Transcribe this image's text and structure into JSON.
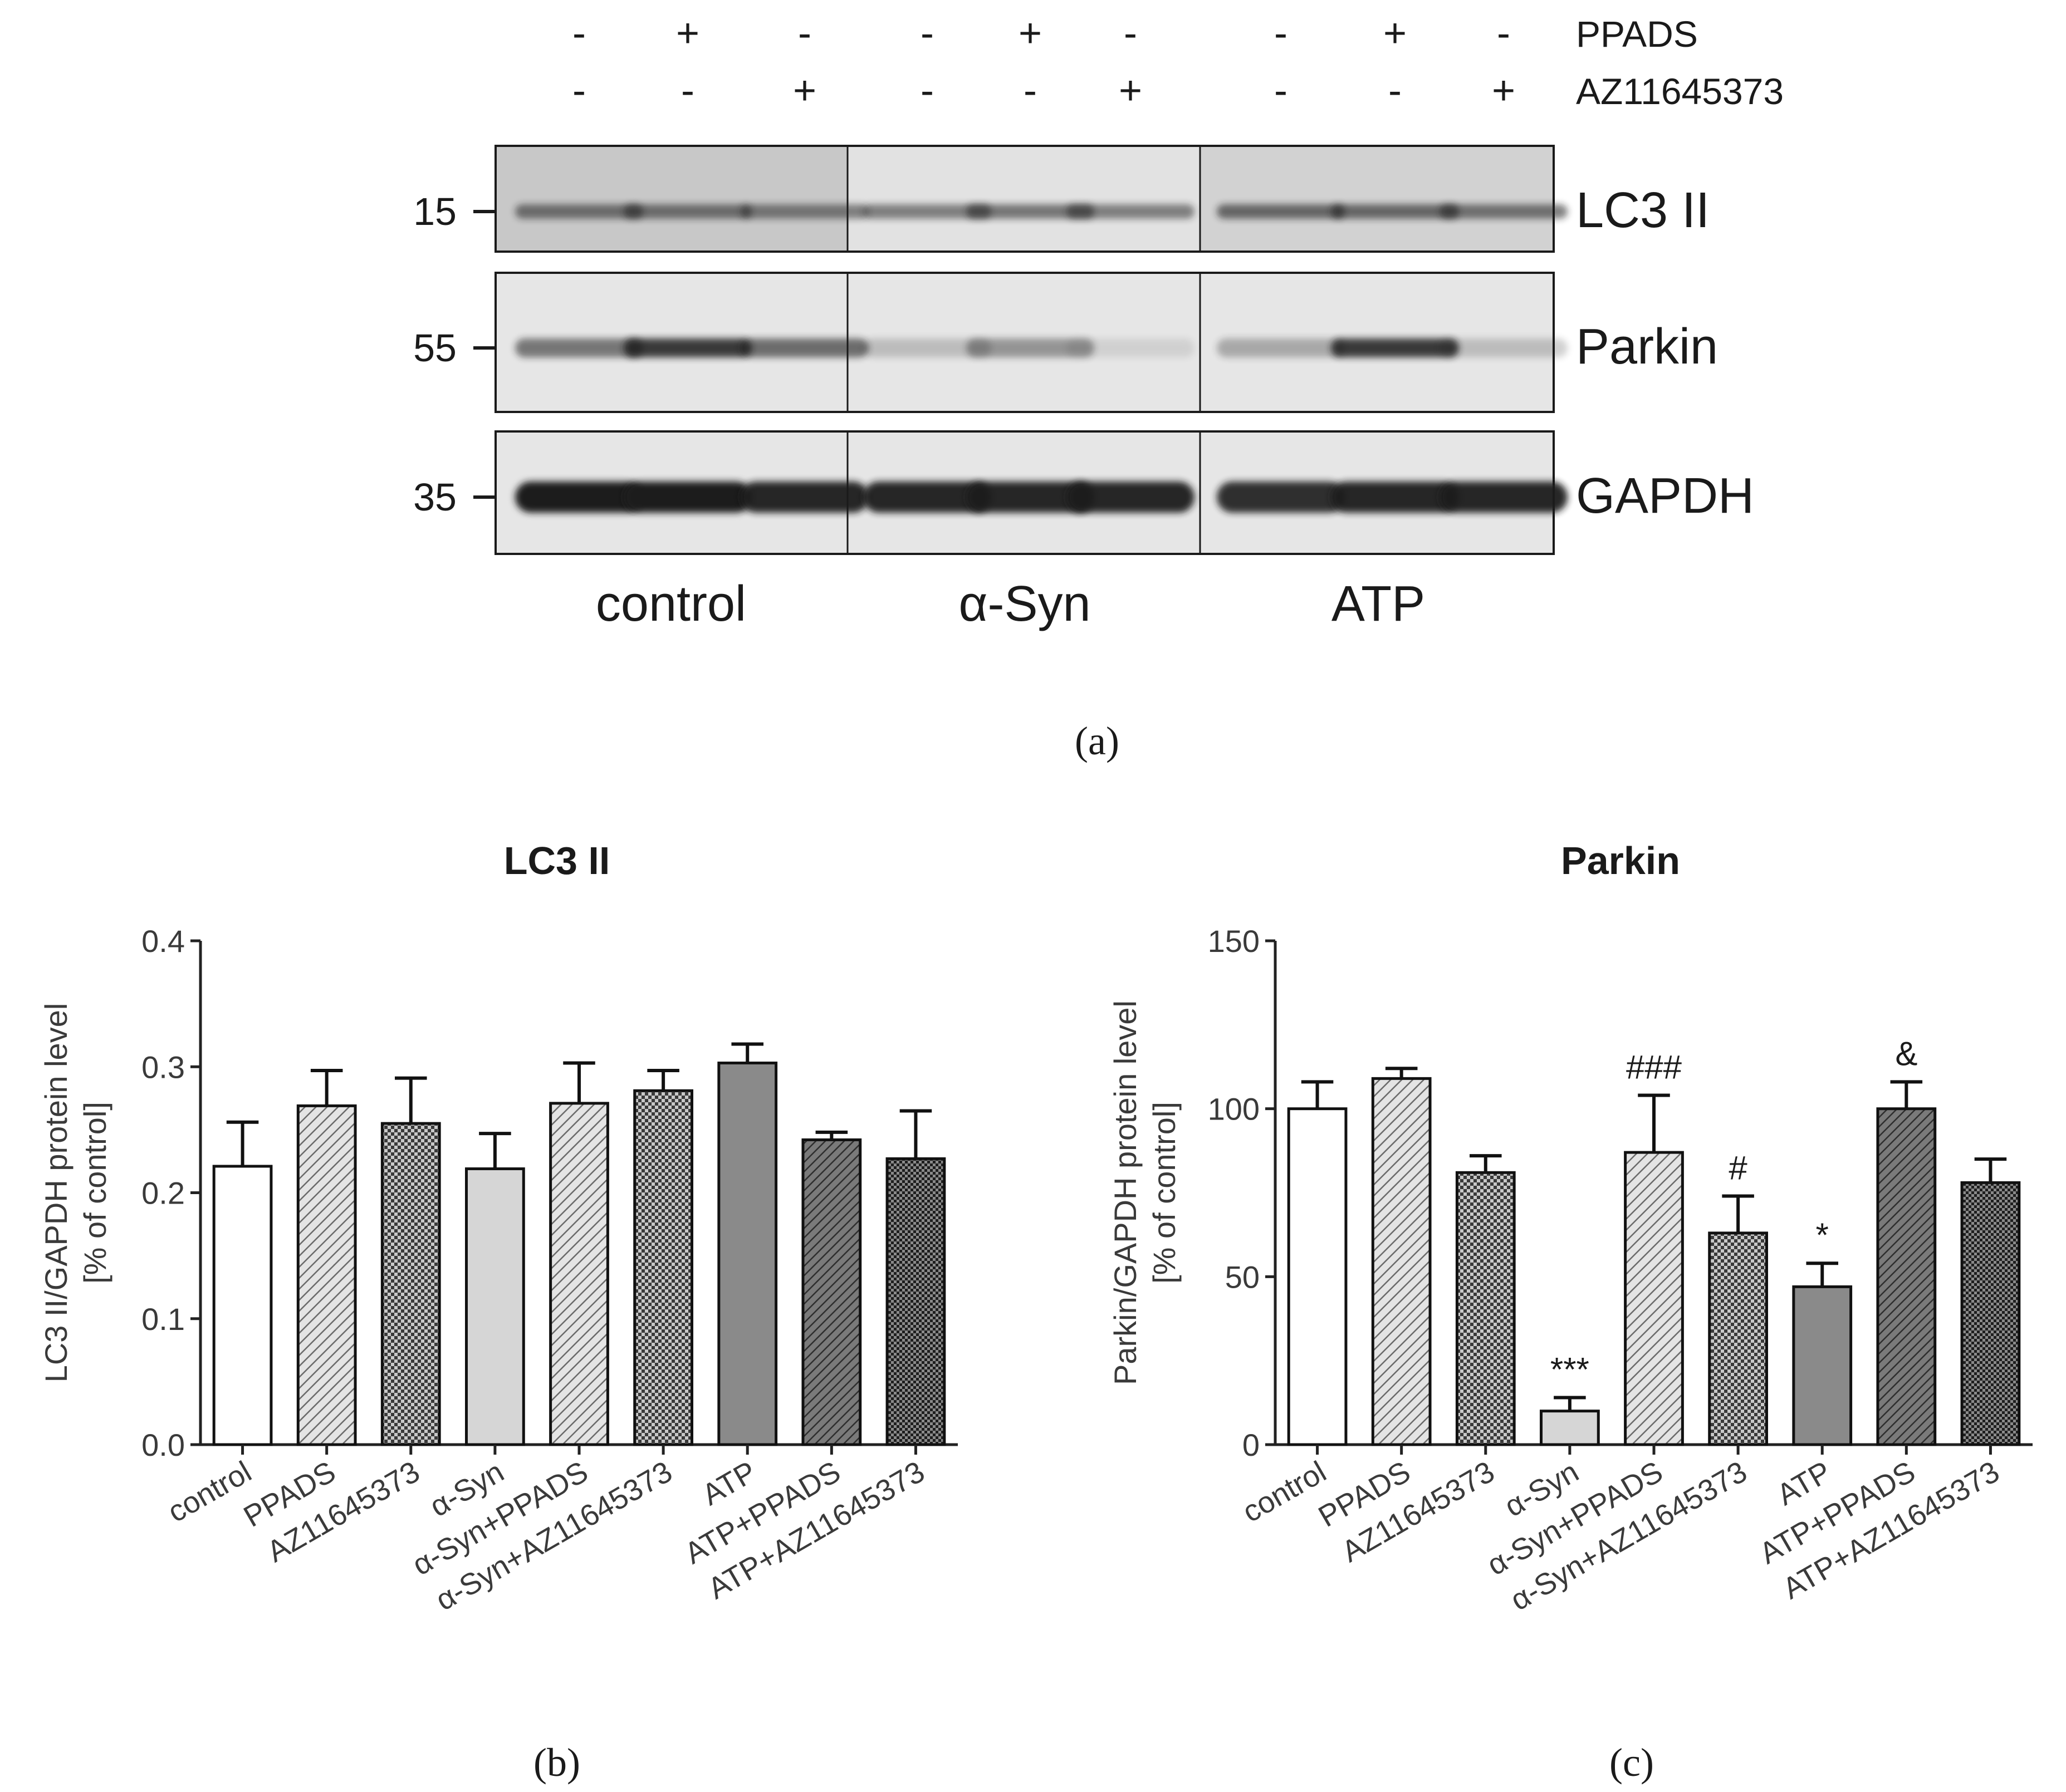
{
  "blot": {
    "treatment_rows": [
      {
        "label": "PPADS",
        "signs": [
          "-",
          "+",
          "-",
          "-",
          "+",
          "-",
          "-",
          "+",
          "-"
        ]
      },
      {
        "label": "AZ11645373",
        "signs": [
          "-",
          "-",
          "+",
          "-",
          "-",
          "+",
          "-",
          "-",
          "+"
        ]
      }
    ],
    "bands": [
      {
        "name": "LC3 II",
        "marker": "15"
      },
      {
        "name": "Parkin",
        "marker": "55"
      },
      {
        "name": "GAPDH",
        "marker": "35"
      }
    ],
    "groups": [
      "control",
      "α-Syn",
      "ATP"
    ],
    "caption": "(a)",
    "band_intensity": {
      "LC3 II": [
        0.55,
        0.55,
        0.5,
        0.5,
        0.55,
        0.5,
        0.6,
        0.6,
        0.55
      ],
      "Parkin": [
        0.55,
        0.85,
        0.6,
        0.2,
        0.4,
        0.1,
        0.3,
        0.85,
        0.2
      ],
      "GAPDH": [
        1.0,
        1.0,
        0.95,
        0.95,
        0.95,
        0.95,
        0.9,
        0.95,
        0.95
      ]
    }
  },
  "chart_data": [
    {
      "type": "bar",
      "title": "LC3 II",
      "ylabel_lines": [
        "LC3 II/GAPDH protein level",
        "[% of control]"
      ],
      "categories": [
        "control",
        "PPADS",
        "AZ11645373",
        "α-Syn",
        "α-Syn+PPADS",
        "α-Syn+AZ11645373",
        "ATP",
        "ATP+PPADS",
        "ATP+AZ11645373"
      ],
      "values": [
        0.221,
        0.269,
        0.255,
        0.219,
        0.271,
        0.281,
        0.303,
        0.242,
        0.227
      ],
      "errors": [
        0.035,
        0.028,
        0.036,
        0.028,
        0.032,
        0.016,
        0.015,
        0.006,
        0.038
      ],
      "annotations": [
        "",
        "",
        "",
        "",
        "",
        "",
        "",
        "",
        ""
      ],
      "ylim": [
        0,
        0.4
      ],
      "yticks": [
        "0.0",
        "0.1",
        "0.2",
        "0.3",
        "0.4"
      ],
      "caption": "(b)"
    },
    {
      "type": "bar",
      "title": "Parkin",
      "ylabel_lines": [
        "Parkin/GAPDH protein level",
        "[% of control]"
      ],
      "categories": [
        "control",
        "PPADS",
        "AZ11645373",
        "α-Syn",
        "α-Syn+PPADS",
        "α-Syn+AZ11645373",
        "ATP",
        "ATP+PPADS",
        "ATP+AZ11645373"
      ],
      "values": [
        100,
        109,
        81,
        10,
        87,
        63,
        47,
        100,
        78
      ],
      "errors": [
        8,
        3,
        5,
        4,
        17,
        11,
        7,
        8,
        7
      ],
      "annotations": [
        "",
        "",
        "",
        "***",
        "###",
        "#",
        "*",
        "&",
        ""
      ],
      "ylim": [
        0,
        150
      ],
      "yticks": [
        "0",
        "50",
        "100",
        "150"
      ],
      "caption": "(c)"
    }
  ],
  "style": {
    "bar_fills": [
      "white",
      "diag-light",
      "check-mid",
      "light-gray",
      "diag-light",
      "check-mid",
      "mid-gray",
      "diag-dark",
      "check-dark"
    ],
    "colors": {
      "text": "#1a1a1a",
      "axis": "#222222",
      "blot_bg": "#dcdcdc",
      "band": "#2a2a2a"
    }
  }
}
